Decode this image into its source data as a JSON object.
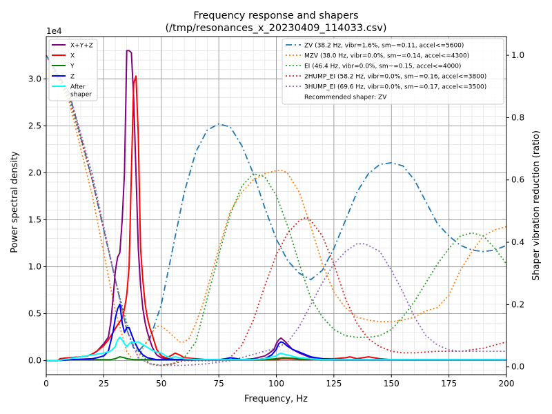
{
  "chart_data": {
    "type": "line",
    "title": "Frequency response and shapers",
    "subtitle": "(/tmp/resonances_x_20230409_114033.csv)",
    "xlabel": "Frequency, Hz",
    "ylabel": "Power spectral density",
    "y2label": "Shaper vibration reduction (ratio)",
    "y_multiplier_label": "1e4",
    "xlim": [
      0,
      200
    ],
    "ylim": [
      -0.15,
      3.45
    ],
    "y2lim": [
      -0.025,
      1.06
    ],
    "xticks": [
      0,
      25,
      50,
      75,
      100,
      125,
      150,
      175,
      200
    ],
    "xtick_labels": [
      "0",
      "25",
      "50",
      "75",
      "100",
      "125",
      "150",
      "175",
      "200"
    ],
    "yticks": [
      0,
      0.5,
      1.0,
      1.5,
      2.0,
      2.5,
      3.0
    ],
    "ytick_labels": [
      "0.0",
      "0.5",
      "1.0",
      "1.5",
      "2.0",
      "2.5",
      "3.0"
    ],
    "y2ticks": [
      0,
      0.2,
      0.4,
      0.6,
      0.8,
      1.0
    ],
    "y2tick_labels": [
      "0.0",
      "0.2",
      "0.4",
      "0.6",
      "0.8",
      "1.0"
    ],
    "grid": true,
    "legend_left_position": "top-left",
    "legend_right_position": "top-right",
    "recommended_note": "Recommended shaper: ZV",
    "psd_series": [
      {
        "name": "X+Y+Z",
        "color": "#800080",
        "x": [
          0,
          5,
          6,
          10,
          15,
          18,
          20,
          22,
          25,
          27,
          28,
          29,
          30,
          31,
          32,
          33,
          34,
          35,
          36,
          37,
          38,
          39,
          40,
          41,
          42,
          43,
          44,
          45,
          46,
          47,
          48,
          50,
          52,
          54,
          56,
          58,
          60,
          65,
          70,
          75,
          80,
          85,
          90,
          95,
          97,
          99,
          100,
          101,
          102,
          103,
          104,
          105,
          107,
          110,
          115,
          120,
          125,
          130,
          135,
          140,
          145,
          150,
          155,
          160,
          170,
          180,
          190,
          200
        ],
        "y": [
          0,
          0,
          0.02,
          0.03,
          0.04,
          0.05,
          0.07,
          0.1,
          0.18,
          0.25,
          0.4,
          0.65,
          0.95,
          1.1,
          1.15,
          1.5,
          2.0,
          3.3,
          3.3,
          3.28,
          2.8,
          2.0,
          1.2,
          0.8,
          0.55,
          0.4,
          0.3,
          0.22,
          0.15,
          0.1,
          0.06,
          0.03,
          0.02,
          0.02,
          0.01,
          0.01,
          0.01,
          0.01,
          0.01,
          0.01,
          0.01,
          0.01,
          0.02,
          0.05,
          0.08,
          0.12,
          0.18,
          0.22,
          0.24,
          0.22,
          0.2,
          0.17,
          0.12,
          0.08,
          0.03,
          0.02,
          0.01,
          0.01,
          0.01,
          0.01,
          0.01,
          0.01,
          0.01,
          0.01,
          0.01,
          0.01,
          0.01,
          0.01
        ]
      },
      {
        "name": "X",
        "color": "#ff0000",
        "x": [
          0,
          5,
          6,
          10,
          15,
          18,
          20,
          22,
          25,
          27,
          29,
          31,
          33,
          34,
          35,
          36,
          37,
          38,
          39,
          40,
          41,
          42,
          43,
          44,
          45,
          46,
          47,
          48,
          50,
          52,
          54,
          56,
          58,
          60,
          65,
          70,
          75,
          80,
          85,
          90,
          95,
          100,
          101,
          102,
          103,
          105,
          110,
          115,
          120,
          125,
          130,
          132,
          135,
          140,
          145,
          150,
          155,
          160,
          170,
          180,
          190,
          200
        ],
        "y": [
          0,
          0,
          0.02,
          0.03,
          0.04,
          0.05,
          0.07,
          0.1,
          0.16,
          0.22,
          0.3,
          0.38,
          0.45,
          0.55,
          0.7,
          1.0,
          2.0,
          2.95,
          3.03,
          2.4,
          1.2,
          0.85,
          0.6,
          0.45,
          0.35,
          0.28,
          0.2,
          0.12,
          0.05,
          0.03,
          0.05,
          0.08,
          0.06,
          0.03,
          0.02,
          0.01,
          0.01,
          0.01,
          0.01,
          0.01,
          0.01,
          0.01,
          0.01,
          0.02,
          0.02,
          0.02,
          0.01,
          0.01,
          0.02,
          0.02,
          0.03,
          0.04,
          0.02,
          0.04,
          0.02,
          0.01,
          0.01,
          0.01,
          0.01,
          0.01,
          0.01,
          0.01
        ]
      },
      {
        "name": "Y",
        "color": "#008000",
        "x": [
          0,
          5,
          10,
          20,
          25,
          28,
          30,
          31,
          32,
          33,
          34,
          35,
          38,
          40,
          45,
          50,
          55,
          60,
          70,
          80,
          90,
          95,
          100,
          103,
          110,
          120,
          130,
          140,
          150,
          160,
          170,
          180,
          190,
          200
        ],
        "y": [
          0,
          0,
          0.01,
          0.01,
          0.01,
          0.01,
          0.02,
          0.03,
          0.04,
          0.035,
          0.03,
          0.02,
          0.01,
          0.01,
          0.01,
          0.01,
          0.01,
          0.01,
          0.01,
          0.01,
          0.01,
          0.01,
          0.02,
          0.03,
          0.02,
          0.01,
          0.01,
          0.01,
          0.01,
          0.01,
          0.01,
          0.01,
          0.01,
          0.01
        ]
      },
      {
        "name": "Z",
        "color": "#0000ff",
        "x": [
          0,
          5,
          10,
          20,
          22,
          25,
          27,
          28,
          29,
          30,
          31,
          32,
          33,
          34,
          35,
          36,
          38,
          40,
          42,
          44,
          46,
          48,
          50,
          52,
          54,
          56,
          58,
          60,
          65,
          70,
          75,
          78,
          80,
          83,
          85,
          90,
          95,
          98,
          100,
          101,
          102,
          103,
          104,
          105,
          107,
          110,
          115,
          120,
          125,
          130,
          140,
          150,
          160,
          170,
          180,
          190,
          200
        ],
        "y": [
          0,
          0,
          0.01,
          0.02,
          0.03,
          0.05,
          0.1,
          0.2,
          0.3,
          0.45,
          0.55,
          0.6,
          0.4,
          0.3,
          0.35,
          0.35,
          0.22,
          0.12,
          0.06,
          0.03,
          0.02,
          0.01,
          0.01,
          0.01,
          0.01,
          0.01,
          0.01,
          0.01,
          0.01,
          0.01,
          0.01,
          0.02,
          0.03,
          0.02,
          0.01,
          0.01,
          0.02,
          0.06,
          0.12,
          0.18,
          0.2,
          0.19,
          0.17,
          0.15,
          0.12,
          0.09,
          0.04,
          0.02,
          0.01,
          0.01,
          0.01,
          0.01,
          0.01,
          0.01,
          0.01,
          0.01,
          0.01
        ]
      },
      {
        "name": "After\nshaper",
        "color": "#00ffff",
        "x": [
          0,
          5,
          10,
          15,
          20,
          25,
          28,
          30,
          31,
          32,
          33,
          34,
          35,
          36,
          37,
          38,
          40,
          42,
          44,
          46,
          48,
          50,
          52,
          54,
          56,
          58,
          60,
          65,
          70,
          75,
          80,
          85,
          90,
          95,
          100,
          101,
          102,
          103,
          105,
          108,
          110,
          115,
          120,
          125,
          130,
          140,
          150,
          160,
          170,
          180,
          190,
          200
        ],
        "y": [
          0,
          0,
          0.02,
          0.04,
          0.06,
          0.08,
          0.1,
          0.15,
          0.22,
          0.25,
          0.22,
          0.18,
          0.15,
          0.18,
          0.2,
          0.19,
          0.2,
          0.17,
          0.14,
          0.11,
          0.09,
          0.08,
          0.05,
          0.03,
          0.04,
          0.03,
          0.02,
          0.01,
          0.01,
          0.01,
          0.01,
          0.01,
          0.01,
          0.02,
          0.05,
          0.07,
          0.08,
          0.07,
          0.06,
          0.04,
          0.03,
          0.02,
          0.01,
          0.01,
          0.01,
          0.01,
          0.01,
          0.01,
          0.01,
          0.01,
          0.01,
          0.01
        ]
      }
    ],
    "shaper_series": [
      {
        "name": "ZV (38.2 Hz, vibr=1.6%, sm~=0.11, accel<=5600)",
        "color": "#1f77b4",
        "dash": "dashdot",
        "x": [
          0,
          10,
          20,
          30,
          35,
          38,
          40,
          45,
          50,
          55,
          60,
          65,
          70,
          75,
          80,
          85,
          90,
          95,
          100,
          105,
          110,
          115,
          120,
          125,
          130,
          135,
          140,
          145,
          150,
          155,
          160,
          165,
          170,
          175,
          180,
          185,
          190,
          195,
          200
        ],
        "y": [
          1.0,
          0.88,
          0.6,
          0.28,
          0.12,
          0.06,
          0.05,
          0.09,
          0.2,
          0.38,
          0.56,
          0.69,
          0.76,
          0.78,
          0.77,
          0.71,
          0.62,
          0.51,
          0.41,
          0.34,
          0.3,
          0.28,
          0.31,
          0.38,
          0.47,
          0.56,
          0.62,
          0.65,
          0.655,
          0.645,
          0.6,
          0.53,
          0.46,
          0.42,
          0.39,
          0.375,
          0.37,
          0.375,
          0.39
        ]
      },
      {
        "name": "MZV (38.0 Hz, vibr=0.0%, sm~=0.14, accel<=4300)",
        "color": "#ff7f0e",
        "dash": "dotted",
        "x": [
          0,
          10,
          20,
          30,
          35,
          38,
          40,
          45,
          48,
          50,
          52,
          55,
          58,
          60,
          62,
          65,
          68,
          70,
          75,
          80,
          85,
          90,
          95,
          100,
          103,
          105,
          110,
          115,
          120,
          125,
          130,
          135,
          140,
          145,
          150,
          155,
          160,
          165,
          170,
          175,
          180,
          185,
          190,
          195,
          200
        ],
        "y": [
          1.0,
          0.85,
          0.55,
          0.18,
          0.05,
          0.02,
          0.03,
          0.1,
          0.13,
          0.13,
          0.12,
          0.1,
          0.08,
          0.08,
          0.09,
          0.14,
          0.2,
          0.25,
          0.38,
          0.5,
          0.56,
          0.6,
          0.62,
          0.63,
          0.63,
          0.62,
          0.56,
          0.45,
          0.33,
          0.24,
          0.19,
          0.16,
          0.15,
          0.145,
          0.145,
          0.15,
          0.16,
          0.18,
          0.19,
          0.23,
          0.31,
          0.37,
          0.42,
          0.44,
          0.45
        ]
      },
      {
        "name": "EI (46.4 Hz, vibr=0.0%, sm~=0.15, accel<=4000)",
        "color": "#2ca02c",
        "dash": "dotted",
        "x": [
          0,
          10,
          20,
          30,
          35,
          40,
          45,
          48,
          50,
          55,
          60,
          65,
          70,
          75,
          80,
          85,
          90,
          95,
          100,
          105,
          110,
          115,
          120,
          125,
          130,
          135,
          140,
          145,
          150,
          155,
          160,
          165,
          170,
          175,
          180,
          185,
          190,
          195,
          200
        ],
        "y": [
          1.0,
          0.86,
          0.6,
          0.28,
          0.14,
          0.05,
          0.01,
          0.005,
          0.005,
          0.01,
          0.03,
          0.08,
          0.22,
          0.36,
          0.49,
          0.58,
          0.62,
          0.61,
          0.55,
          0.45,
          0.33,
          0.22,
          0.16,
          0.12,
          0.1,
          0.095,
          0.095,
          0.1,
          0.12,
          0.16,
          0.21,
          0.27,
          0.33,
          0.38,
          0.42,
          0.43,
          0.42,
          0.38,
          0.33
        ]
      },
      {
        "name": "2HUMP_EI (58.2 Hz, vibr=0.0%, sm~=0.16, accel<=3800)",
        "color": "#d62728",
        "dash": "dotted",
        "x": [
          0,
          10,
          20,
          30,
          35,
          40,
          45,
          50,
          55,
          60,
          65,
          70,
          75,
          80,
          85,
          90,
          95,
          100,
          105,
          110,
          113,
          115,
          120,
          125,
          130,
          135,
          140,
          145,
          150,
          155,
          160,
          170,
          180,
          190,
          200
        ],
        "y": [
          1.0,
          0.87,
          0.6,
          0.28,
          0.12,
          0.03,
          0.01,
          0.005,
          0.01,
          0.02,
          0.02,
          0.02,
          0.02,
          0.03,
          0.07,
          0.15,
          0.26,
          0.36,
          0.43,
          0.47,
          0.48,
          0.47,
          0.42,
          0.33,
          0.22,
          0.14,
          0.09,
          0.065,
          0.05,
          0.045,
          0.045,
          0.05,
          0.05,
          0.06,
          0.08
        ]
      },
      {
        "name": "3HUMP_EI (69.6 Hz, vibr=0.0%, sm~=0.17, accel<=3500)",
        "color": "#9467bd",
        "dash": "dotted",
        "x": [
          0,
          10,
          20,
          30,
          35,
          40,
          45,
          50,
          60,
          70,
          80,
          90,
          95,
          100,
          105,
          110,
          115,
          120,
          125,
          130,
          135,
          138,
          140,
          145,
          150,
          155,
          160,
          165,
          170,
          175,
          180,
          190,
          200
        ],
        "y": [
          1.0,
          0.88,
          0.62,
          0.28,
          0.12,
          0.03,
          0.01,
          0.005,
          0.005,
          0.01,
          0.02,
          0.04,
          0.05,
          0.06,
          0.08,
          0.13,
          0.2,
          0.27,
          0.33,
          0.37,
          0.395,
          0.395,
          0.39,
          0.37,
          0.31,
          0.24,
          0.16,
          0.1,
          0.07,
          0.055,
          0.05,
          0.05,
          0.05
        ]
      }
    ]
  }
}
